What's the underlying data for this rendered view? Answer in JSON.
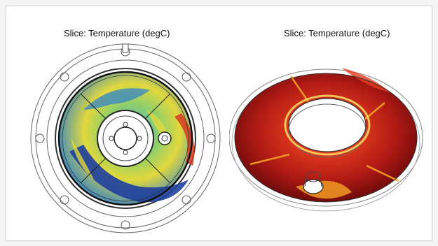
{
  "plots": [
    {
      "title": "Slice: Temperature (degC)",
      "view": "top"
    },
    {
      "title": "Slice: Temperature (degC)",
      "view": "isometric"
    }
  ],
  "colormaps": {
    "rainbow": [
      "#1e3f9e",
      "#2a7fd1",
      "#3fb6d8",
      "#8fcf6a",
      "#e1d83c",
      "#f0a030",
      "#d83a1e"
    ],
    "thermal": [
      "#6e0b0b",
      "#b01a14",
      "#e23b1d",
      "#f6a324",
      "#fbe86a",
      "#ffffff"
    ]
  }
}
